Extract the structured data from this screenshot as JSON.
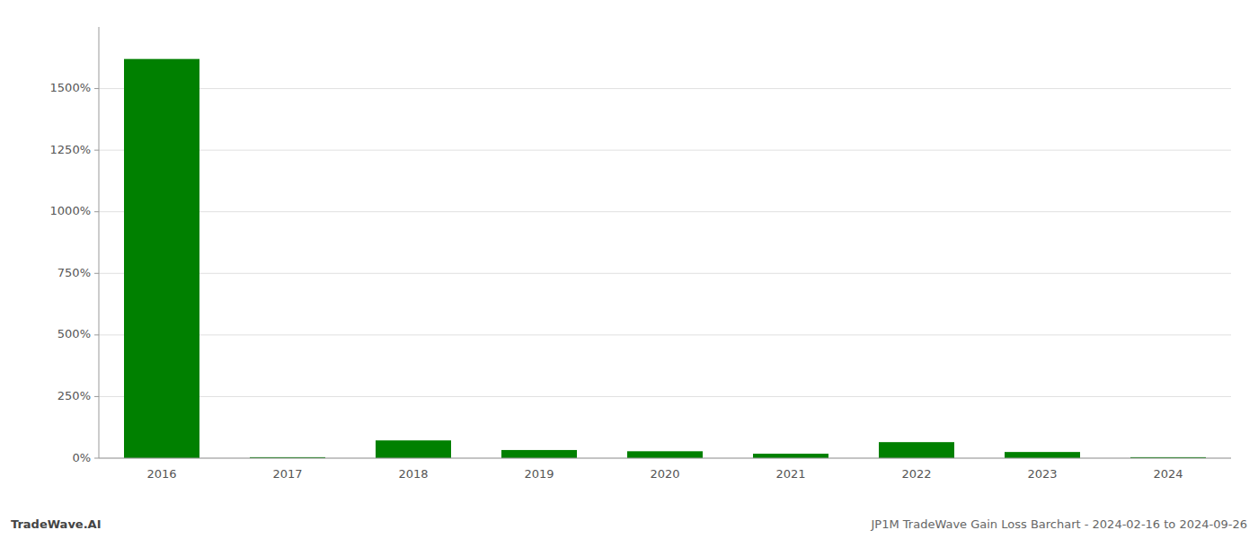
{
  "chart_data": {
    "type": "bar",
    "categories": [
      "2016",
      "2017",
      "2018",
      "2019",
      "2020",
      "2021",
      "2022",
      "2023",
      "2024"
    ],
    "values": [
      16.2,
      0.04,
      0.72,
      0.33,
      0.28,
      0.18,
      0.65,
      0.25,
      0.04
    ],
    "color": "#008000",
    "ylim": [
      0,
      17.5
    ],
    "yticks": [
      {
        "value": 0.0,
        "label": "0%"
      },
      {
        "value": 2.5,
        "label": "250%"
      },
      {
        "value": 5.0,
        "label": "500%"
      },
      {
        "value": 7.5,
        "label": "750%"
      },
      {
        "value": 10.0,
        "label": "1000%"
      },
      {
        "value": 12.5,
        "label": "1250%"
      },
      {
        "value": 15.0,
        "label": "1500%"
      }
    ],
    "grid": true,
    "annotations": [
      "TradeWave.AI",
      "JP1M TradeWave Gain Loss Barchart - 2024-02-16 to 2024-09-26"
    ]
  }
}
